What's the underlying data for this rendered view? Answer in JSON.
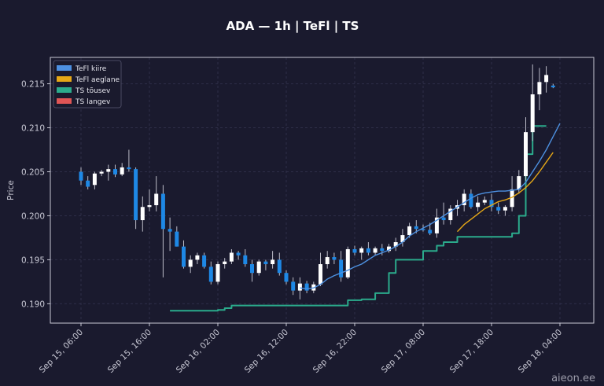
{
  "chart_data": {
    "type": "candlestick",
    "title": "ADA — 1h  |  TeFl  |  TS",
    "ylabel": "Price",
    "xlabel": "",
    "ylim": [
      0.1878,
      0.218
    ],
    "yticks": [
      0.19,
      0.195,
      0.2,
      0.205,
      0.21,
      0.215
    ],
    "ytick_labels": [
      "0.190",
      "0.195",
      "0.200",
      "0.205",
      "0.210",
      "0.215"
    ],
    "grid": true,
    "legend_position": "top-left",
    "x_ticks": [
      {
        "label": "Sep 15, 06:00",
        "index": 0
      },
      {
        "label": "Sep 15, 16:00",
        "index": 10
      },
      {
        "label": "Sep 16, 02:00",
        "index": 20
      },
      {
        "label": "Sep 16, 12:00",
        "index": 30
      },
      {
        "label": "Sep 16, 22:00",
        "index": 40
      },
      {
        "label": "Sep 17, 08:00",
        "index": 50
      },
      {
        "label": "Sep 17, 18:00",
        "index": 60
      },
      {
        "label": "Sep 18, 04:00",
        "index": 70
      }
    ],
    "candles": [
      [
        0.205,
        0.2055,
        0.2035,
        0.204
      ],
      [
        0.204,
        0.2045,
        0.203,
        0.2033
      ],
      [
        0.2035,
        0.205,
        0.203,
        0.2048
      ],
      [
        0.2048,
        0.2052,
        0.2045,
        0.205
      ],
      [
        0.205,
        0.2058,
        0.204,
        0.2053
      ],
      [
        0.2053,
        0.2058,
        0.2044,
        0.2047
      ],
      [
        0.2047,
        0.206,
        0.2045,
        0.2055
      ],
      [
        0.2055,
        0.2075,
        0.205,
        0.2053
      ],
      [
        0.2053,
        0.2055,
        0.1985,
        0.1995
      ],
      [
        0.1995,
        0.2022,
        0.1982,
        0.201
      ],
      [
        0.201,
        0.203,
        0.2005,
        0.2012
      ],
      [
        0.2012,
        0.2045,
        0.2005,
        0.2025
      ],
      [
        0.2025,
        0.2035,
        0.193,
        0.1985
      ],
      [
        0.1985,
        0.1998,
        0.196,
        0.1982
      ],
      [
        0.1982,
        0.1988,
        0.1965,
        0.1965
      ],
      [
        0.1965,
        0.1972,
        0.194,
        0.1942
      ],
      [
        0.1942,
        0.1955,
        0.1935,
        0.195
      ],
      [
        0.195,
        0.1958,
        0.1945,
        0.1955
      ],
      [
        0.1955,
        0.1958,
        0.194,
        0.1942
      ],
      [
        0.1942,
        0.1948,
        0.1922,
        0.1925
      ],
      [
        0.1925,
        0.1948,
        0.1922,
        0.1945
      ],
      [
        0.1945,
        0.1952,
        0.194,
        0.1948
      ],
      [
        0.1948,
        0.1962,
        0.1945,
        0.1958
      ],
      [
        0.1958,
        0.196,
        0.195,
        0.1955
      ],
      [
        0.1955,
        0.1962,
        0.1942,
        0.1945
      ],
      [
        0.1945,
        0.195,
        0.1925,
        0.1935
      ],
      [
        0.1935,
        0.195,
        0.1932,
        0.1948
      ],
      [
        0.1948,
        0.195,
        0.1938,
        0.1945
      ],
      [
        0.1945,
        0.196,
        0.194,
        0.195
      ],
      [
        0.195,
        0.1958,
        0.1932,
        0.1935
      ],
      [
        0.1935,
        0.1938,
        0.1922,
        0.1925
      ],
      [
        0.1925,
        0.193,
        0.191,
        0.1915
      ],
      [
        0.1915,
        0.193,
        0.1905,
        0.1923
      ],
      [
        0.1923,
        0.1926,
        0.1912,
        0.1915
      ],
      [
        0.1915,
        0.1925,
        0.1912,
        0.1922
      ],
      [
        0.1922,
        0.1958,
        0.192,
        0.1945
      ],
      [
        0.1945,
        0.196,
        0.194,
        0.1953
      ],
      [
        0.1953,
        0.1958,
        0.1945,
        0.195
      ],
      [
        0.195,
        0.196,
        0.1925,
        0.193
      ],
      [
        0.193,
        0.1965,
        0.1928,
        0.1962
      ],
      [
        0.1962,
        0.1966,
        0.1955,
        0.1958
      ],
      [
        0.1958,
        0.1965,
        0.195,
        0.1963
      ],
      [
        0.1963,
        0.197,
        0.1955,
        0.1958
      ],
      [
        0.1958,
        0.1965,
        0.1955,
        0.1963
      ],
      [
        0.1963,
        0.1968,
        0.1955,
        0.196
      ],
      [
        0.196,
        0.1968,
        0.1958,
        0.1965
      ],
      [
        0.1965,
        0.1975,
        0.196,
        0.197
      ],
      [
        0.197,
        0.1985,
        0.1965,
        0.1978
      ],
      [
        0.1978,
        0.1992,
        0.1975,
        0.1988
      ],
      [
        0.1988,
        0.1995,
        0.198,
        0.1985
      ],
      [
        0.1985,
        0.199,
        0.1982,
        0.1984
      ],
      [
        0.1984,
        0.1992,
        0.1978,
        0.198
      ],
      [
        0.198,
        0.2008,
        0.1975,
        0.1998
      ],
      [
        0.1998,
        0.2015,
        0.199,
        0.1995
      ],
      [
        0.1995,
        0.2012,
        0.199,
        0.2008
      ],
      [
        0.2008,
        0.2018,
        0.2,
        0.2012
      ],
      [
        0.2012,
        0.203,
        0.2005,
        0.2025
      ],
      [
        0.2025,
        0.203,
        0.2008,
        0.201
      ],
      [
        0.201,
        0.2022,
        0.2005,
        0.2015
      ],
      [
        0.2015,
        0.2022,
        0.2012,
        0.2018
      ],
      [
        0.2018,
        0.2025,
        0.2005,
        0.201
      ],
      [
        0.201,
        0.2015,
        0.2002,
        0.2006
      ],
      [
        0.2006,
        0.2012,
        0.2,
        0.201
      ],
      [
        0.201,
        0.2045,
        0.2005,
        0.203
      ],
      [
        0.203,
        0.2052,
        0.2025,
        0.2045
      ],
      [
        0.2045,
        0.2112,
        0.204,
        0.2095
      ],
      [
        0.2095,
        0.2172,
        0.2085,
        0.2138
      ],
      [
        0.2138,
        0.2168,
        0.212,
        0.2152
      ],
      [
        0.2152,
        0.217,
        0.214,
        0.216
      ],
      [
        0.2148,
        0.215,
        0.2145,
        0.2146
      ]
    ],
    "series": [
      {
        "name": "TeFl kiire",
        "color": "#4d90e0",
        "values": [
          null,
          null,
          null,
          null,
          null,
          null,
          null,
          null,
          null,
          null,
          null,
          null,
          null,
          null,
          null,
          null,
          null,
          null,
          null,
          null,
          null,
          null,
          null,
          null,
          null,
          null,
          null,
          null,
          null,
          null,
          null,
          null,
          0.1918,
          0.1917,
          0.1918,
          0.1922,
          0.1928,
          0.1932,
          0.1935,
          0.1938,
          0.1942,
          0.1945,
          0.195,
          0.1955,
          0.1958,
          0.1961,
          0.1965,
          0.197,
          0.1977,
          0.1982,
          0.1986,
          0.199,
          0.1995,
          0.2,
          0.2005,
          0.201,
          0.2015,
          0.202,
          0.2024,
          0.2026,
          0.2027,
          0.2028,
          0.2028,
          0.2029,
          0.203,
          0.2038,
          0.205,
          0.2062,
          0.2075,
          0.209,
          0.2105
        ]
      },
      {
        "name": "TeFl aeglane",
        "color": "#e6a817",
        "values": [
          null,
          null,
          null,
          null,
          null,
          null,
          null,
          null,
          null,
          null,
          null,
          null,
          null,
          null,
          null,
          null,
          null,
          null,
          null,
          null,
          null,
          null,
          null,
          null,
          null,
          null,
          null,
          null,
          null,
          null,
          null,
          null,
          null,
          null,
          null,
          null,
          null,
          null,
          null,
          null,
          null,
          null,
          null,
          null,
          null,
          null,
          null,
          null,
          null,
          null,
          null,
          null,
          null,
          null,
          null,
          0.1982,
          0.199,
          0.1996,
          0.2002,
          0.2008,
          0.2012,
          0.2016,
          0.2018,
          0.2021,
          0.2026,
          0.2032,
          0.204,
          0.205,
          0.2061,
          0.2072
        ]
      },
      {
        "name": "TS tõusev",
        "color": "#2bab8c",
        "values": [
          null,
          null,
          null,
          null,
          null,
          null,
          null,
          null,
          null,
          null,
          null,
          null,
          null,
          0.1892,
          0.1892,
          0.1892,
          0.1892,
          0.1892,
          0.1892,
          0.1892,
          0.1893,
          0.1895,
          0.1898,
          0.1898,
          0.1898,
          0.1898,
          0.1898,
          0.1898,
          0.1898,
          0.1898,
          0.1898,
          0.1898,
          0.1898,
          0.1898,
          0.1898,
          0.1898,
          0.1898,
          0.1898,
          0.1898,
          0.1904,
          0.1904,
          0.1905,
          0.1905,
          0.1912,
          0.1912,
          0.1935,
          0.195,
          0.195,
          0.195,
          0.195,
          0.196,
          0.196,
          0.1966,
          0.197,
          0.197,
          0.1976,
          0.1976,
          0.1976,
          0.1976,
          0.1976,
          0.1976,
          0.1976,
          0.1976,
          0.198,
          0.2,
          0.207,
          0.2102,
          0.2102,
          0.2102
        ]
      },
      {
        "name": "TS langev",
        "color": "#e05555",
        "values": []
      }
    ]
  },
  "watermark": "aieon.ee",
  "colors": {
    "background": "#1a1a2e",
    "up_candle": "#ffffff",
    "down_candle": "#1e88e5",
    "wick": "#bcbcc8",
    "grid": "#2e2e48",
    "frame": "#c8c8d4"
  }
}
